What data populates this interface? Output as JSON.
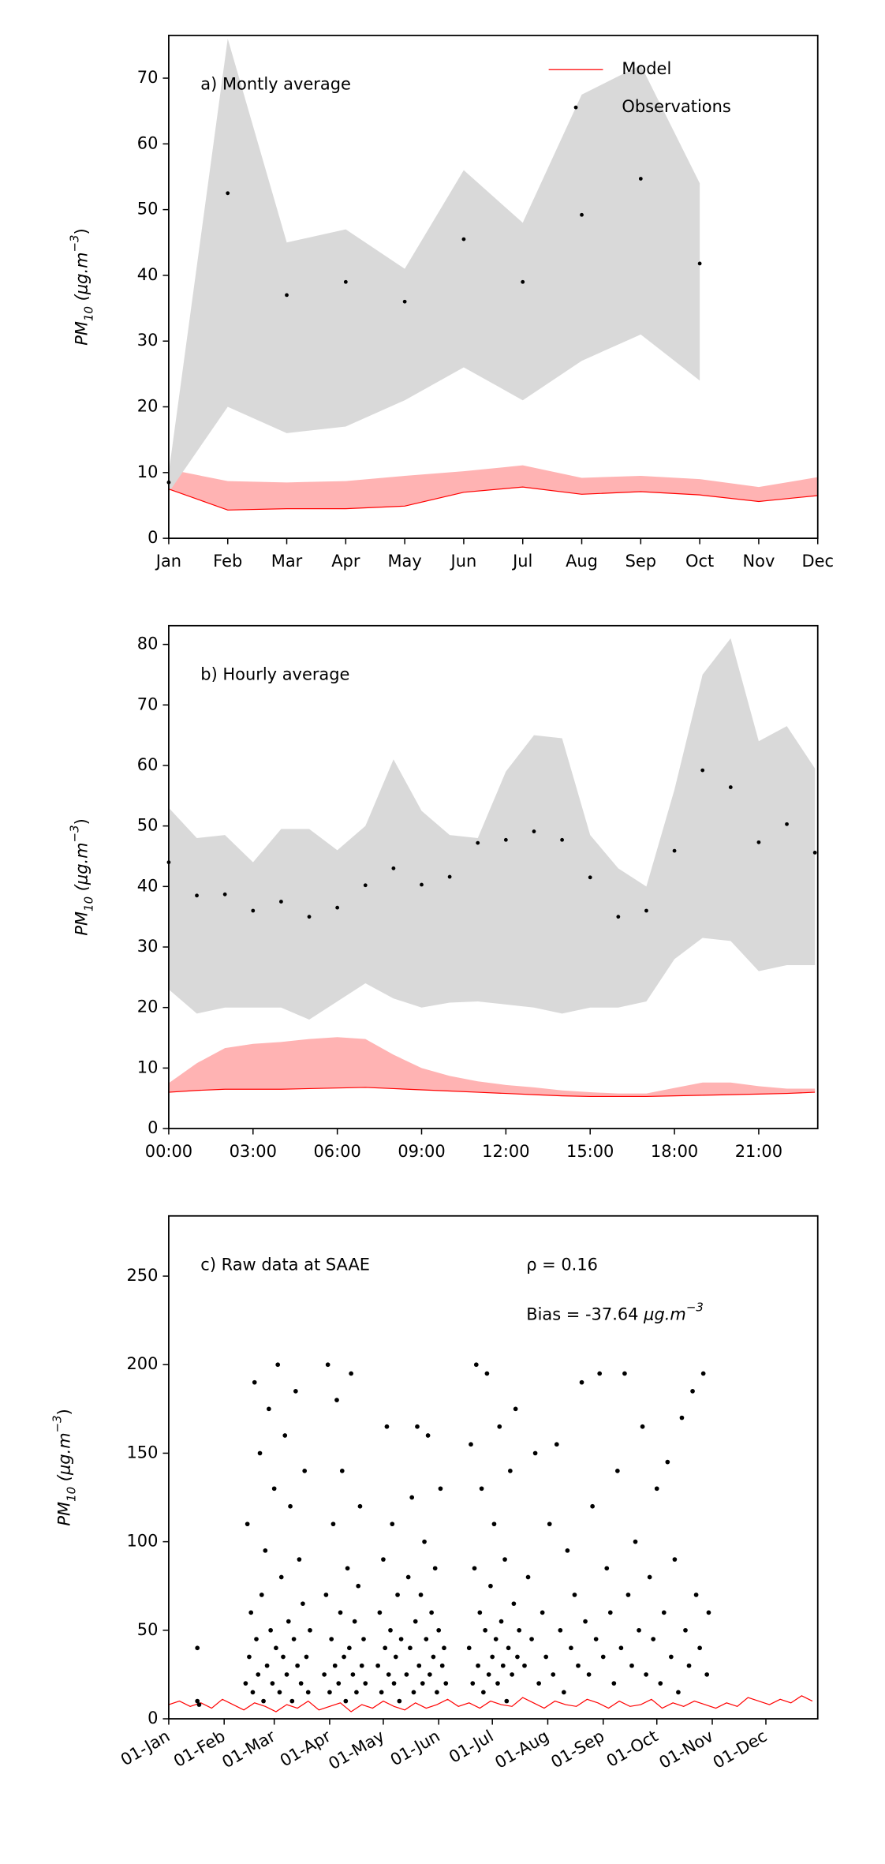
{
  "chart_data": [
    {
      "type": "line",
      "annotation": "a) Montly average",
      "legend": "upper right",
      "categories": [
        "Jan",
        "Feb",
        "Mar",
        "Apr",
        "May",
        "Jun",
        "Jul",
        "Aug",
        "Sep",
        "Oct",
        "Nov",
        "Dec"
      ],
      "xlim": [
        0,
        11
      ],
      "ylim": [
        0,
        76.5
      ],
      "yticks": [
        0,
        10,
        20,
        30,
        40,
        50,
        60,
        70
      ],
      "ylabel": [
        "PM",
        "10",
        " (μg.m",
        "−3",
        ")"
      ],
      "series": [
        {
          "name": "Model",
          "color": "#ff0000",
          "band_color": "#ffb3b3",
          "style": "line",
          "values": [
            7.5,
            4.3,
            4.5,
            4.5,
            4.9,
            7.0,
            7.8,
            6.7,
            7.1,
            6.6,
            5.6,
            6.5
          ],
          "upper": [
            10.5,
            8.7,
            8.5,
            8.7,
            9.5,
            10.2,
            11.1,
            9.2,
            9.5,
            9.0,
            7.8,
            9.3
          ]
        },
        {
          "name": "Observations",
          "color": "#000000",
          "band_color": "#d9d9d9",
          "style": "dots",
          "values": [
            8.5,
            52.5,
            37,
            39,
            36,
            45.5,
            39,
            49.2,
            54.7,
            41.8,
            null,
            null
          ],
          "upper": [
            10,
            76,
            45,
            47,
            41,
            56,
            48,
            67.5,
            72,
            54,
            null,
            null
          ],
          "lower": [
            7,
            20,
            16,
            17,
            21,
            26,
            21,
            27,
            31,
            24,
            null,
            null
          ]
        }
      ]
    },
    {
      "type": "line",
      "annotation": "b) Hourly average",
      "x": [
        0,
        1,
        2,
        3,
        4,
        5,
        6,
        7,
        8,
        9,
        10,
        11,
        12,
        13,
        14,
        15,
        16,
        17,
        18,
        19,
        20,
        21,
        22,
        23
      ],
      "xlim": [
        0,
        23.1
      ],
      "ylim": [
        0,
        83.1
      ],
      "yticks": [
        0,
        10,
        20,
        30,
        40,
        50,
        60,
        70,
        80
      ],
      "xticks": [
        {
          "value": 0,
          "label": "00:00"
        },
        {
          "value": 3,
          "label": "03:00"
        },
        {
          "value": 6,
          "label": "06:00"
        },
        {
          "value": 9,
          "label": "09:00"
        },
        {
          "value": 12,
          "label": "12:00"
        },
        {
          "value": 15,
          "label": "15:00"
        },
        {
          "value": 18,
          "label": "18:00"
        },
        {
          "value": 21,
          "label": "21:00"
        }
      ],
      "ylabel": [
        "PM",
        "10",
        " (μg.m",
        "−3",
        ")"
      ],
      "series": [
        {
          "name": "Model",
          "color": "#ff0000",
          "band_color": "#ffb3b3",
          "style": "line",
          "values": [
            6,
            6.3,
            6.5,
            6.5,
            6.5,
            6.6,
            6.7,
            6.8,
            6.6,
            6.4,
            6.2,
            6,
            5.8,
            5.6,
            5.4,
            5.3,
            5.3,
            5.3,
            5.4,
            5.5,
            5.6,
            5.7,
            5.8,
            6
          ],
          "upper": [
            7.5,
            10.8,
            13.3,
            14,
            14.3,
            14.8,
            15.1,
            14.8,
            12.2,
            10,
            8.7,
            7.8,
            7.2,
            6.8,
            6.3,
            6,
            5.8,
            5.8,
            6.7,
            7.6,
            7.6,
            7,
            6.6,
            6.6
          ]
        },
        {
          "name": "Observations",
          "color": "#000000",
          "band_color": "#d9d9d9",
          "style": "dots",
          "values": [
            44,
            38.5,
            38.7,
            36,
            37.5,
            35,
            36.5,
            40.2,
            43,
            40.3,
            41.6,
            47.2,
            47.7,
            49.1,
            47.7,
            41.5,
            35,
            36,
            45.9,
            59.2,
            56.4,
            47.3,
            50.3,
            45.6
          ],
          "upper": [
            53,
            48,
            48.5,
            44,
            49.5,
            49.5,
            46,
            50,
            61,
            52.5,
            48.5,
            48,
            59,
            65,
            64.5,
            48.5,
            43,
            40,
            56,
            75,
            81,
            64,
            66.5,
            59.5
          ],
          "lower": [
            23,
            19,
            20,
            20,
            20,
            18,
            21,
            24,
            21.5,
            20,
            20.8,
            21,
            20.5,
            20,
            19,
            20,
            20,
            21,
            28,
            31.5,
            31,
            26,
            27,
            27
          ]
        }
      ]
    },
    {
      "type": "scatter",
      "annotation": "c) Raw data at SAAE",
      "stat": "ρ = 0.16",
      "bias": [
        "Bias = -37.64 ",
        "μg.m",
        "−3"
      ],
      "xlim": [
        0,
        363
      ],
      "ylim": [
        0,
        284
      ],
      "yticks": [
        0,
        50,
        100,
        150,
        200,
        250
      ],
      "xticks": [
        {
          "value": 0,
          "label": "01-Jan"
        },
        {
          "value": 31,
          "label": "01-Feb"
        },
        {
          "value": 59,
          "label": "01-Mar"
        },
        {
          "value": 90,
          "label": "01-Apr"
        },
        {
          "value": 120,
          "label": "01-May"
        },
        {
          "value": 151,
          "label": "01-Jun"
        },
        {
          "value": 181,
          "label": "01-Jul"
        },
        {
          "value": 212,
          "label": "01-Aug"
        },
        {
          "value": 243,
          "label": "01-Sep"
        },
        {
          "value": 273,
          "label": "01-Oct"
        },
        {
          "value": 304,
          "label": "01-Nov"
        },
        {
          "value": 334,
          "label": "01-Dec"
        }
      ],
      "ylabel": [
        "PM",
        "10",
        " (μg.m",
        "−3",
        ")"
      ],
      "series": [
        {
          "name": "Model",
          "color": "#ff0000",
          "style": "line",
          "x": [
            0,
            6,
            12,
            18,
            24,
            30,
            36,
            42,
            48,
            54,
            60,
            66,
            72,
            78,
            84,
            90,
            96,
            102,
            108,
            114,
            120,
            126,
            132,
            138,
            144,
            150,
            156,
            162,
            168,
            174,
            180,
            186,
            192,
            198,
            204,
            210,
            216,
            222,
            228,
            234,
            240,
            246,
            252,
            258,
            264,
            270,
            276,
            282,
            288,
            294,
            300,
            306,
            312,
            318,
            324,
            330,
            336,
            342,
            348,
            354,
            360
          ],
          "values": [
            8,
            10,
            7,
            9,
            6,
            11,
            8,
            5,
            9,
            7,
            4,
            8,
            6,
            10,
            5,
            7,
            9,
            4,
            8,
            6,
            10,
            7,
            5,
            9,
            6,
            8,
            11,
            7,
            9,
            6,
            10,
            8,
            7,
            12,
            9,
            6,
            10,
            8,
            7,
            11,
            9,
            6,
            10,
            7,
            8,
            11,
            6,
            9,
            7,
            10,
            8,
            6,
            9,
            7,
            12,
            10,
            8,
            11,
            9,
            13,
            10
          ]
        },
        {
          "name": "Observations",
          "color": "#000000",
          "style": "dots",
          "x": [
            16,
            16,
            17,
            43,
            44,
            45,
            46,
            47,
            48,
            49,
            50,
            51,
            52,
            53,
            54,
            55,
            56,
            57,
            58,
            59,
            60,
            61,
            62,
            63,
            64,
            65,
            66,
            67,
            68,
            69,
            70,
            71,
            72,
            73,
            74,
            75,
            76,
            77,
            78,
            79,
            87,
            88,
            89,
            90,
            91,
            92,
            93,
            94,
            95,
            96,
            97,
            98,
            99,
            100,
            101,
            102,
            103,
            104,
            105,
            106,
            107,
            108,
            109,
            110,
            117,
            118,
            119,
            120,
            121,
            122,
            123,
            124,
            125,
            126,
            127,
            128,
            129,
            130,
            133,
            134,
            135,
            136,
            137,
            138,
            139,
            140,
            141,
            142,
            143,
            144,
            145,
            146,
            147,
            148,
            149,
            150,
            151,
            152,
            153,
            154,
            155,
            168,
            169,
            170,
            171,
            172,
            173,
            174,
            175,
            176,
            177,
            178,
            179,
            180,
            181,
            182,
            183,
            184,
            185,
            186,
            187,
            188,
            189,
            190,
            191,
            192,
            193,
            194,
            195,
            196,
            199,
            201,
            203,
            205,
            207,
            209,
            211,
            213,
            215,
            217,
            219,
            221,
            223,
            225,
            227,
            229,
            231,
            233,
            235,
            237,
            239,
            241,
            243,
            245,
            247,
            249,
            251,
            253,
            255,
            257,
            259,
            261,
            263,
            265,
            267,
            269,
            271,
            273,
            275,
            277,
            279,
            281,
            283,
            285,
            287,
            289,
            291,
            293,
            295,
            297,
            299,
            301,
            302
          ],
          "values": [
            40,
            10,
            8,
            20,
            110,
            35,
            60,
            15,
            190,
            45,
            25,
            150,
            70,
            10,
            95,
            30,
            175,
            50,
            20,
            130,
            40,
            200,
            15,
            80,
            35,
            160,
            25,
            55,
            120,
            10,
            45,
            185,
            30,
            90,
            20,
            65,
            140,
            35,
            15,
            50,
            25,
            70,
            200,
            15,
            45,
            110,
            30,
            180,
            20,
            60,
            140,
            35,
            10,
            85,
            40,
            195,
            25,
            55,
            15,
            75,
            120,
            30,
            45,
            20,
            30,
            60,
            15,
            90,
            40,
            165,
            25,
            50,
            110,
            20,
            35,
            70,
            10,
            45,
            25,
            80,
            40,
            125,
            15,
            55,
            165,
            30,
            70,
            20,
            100,
            45,
            160,
            25,
            60,
            35,
            85,
            15,
            50,
            130,
            30,
            40,
            20,
            40,
            155,
            20,
            85,
            200,
            30,
            60,
            130,
            15,
            50,
            195,
            25,
            75,
            35,
            110,
            45,
            20,
            165,
            55,
            30,
            90,
            10,
            40,
            140,
            25,
            65,
            175,
            35,
            50,
            30,
            80,
            45,
            150,
            20,
            60,
            35,
            110,
            25,
            155,
            50,
            15,
            95,
            40,
            70,
            30,
            190,
            55,
            25,
            120,
            45,
            195,
            35,
            85,
            60,
            20,
            140,
            40,
            195,
            70,
            30,
            100,
            50,
            165,
            25,
            80,
            45,
            130,
            20,
            60,
            145,
            35,
            90,
            15,
            170,
            50,
            30,
            185,
            70,
            40,
            195,
            25,
            60
          ]
        }
      ]
    }
  ]
}
